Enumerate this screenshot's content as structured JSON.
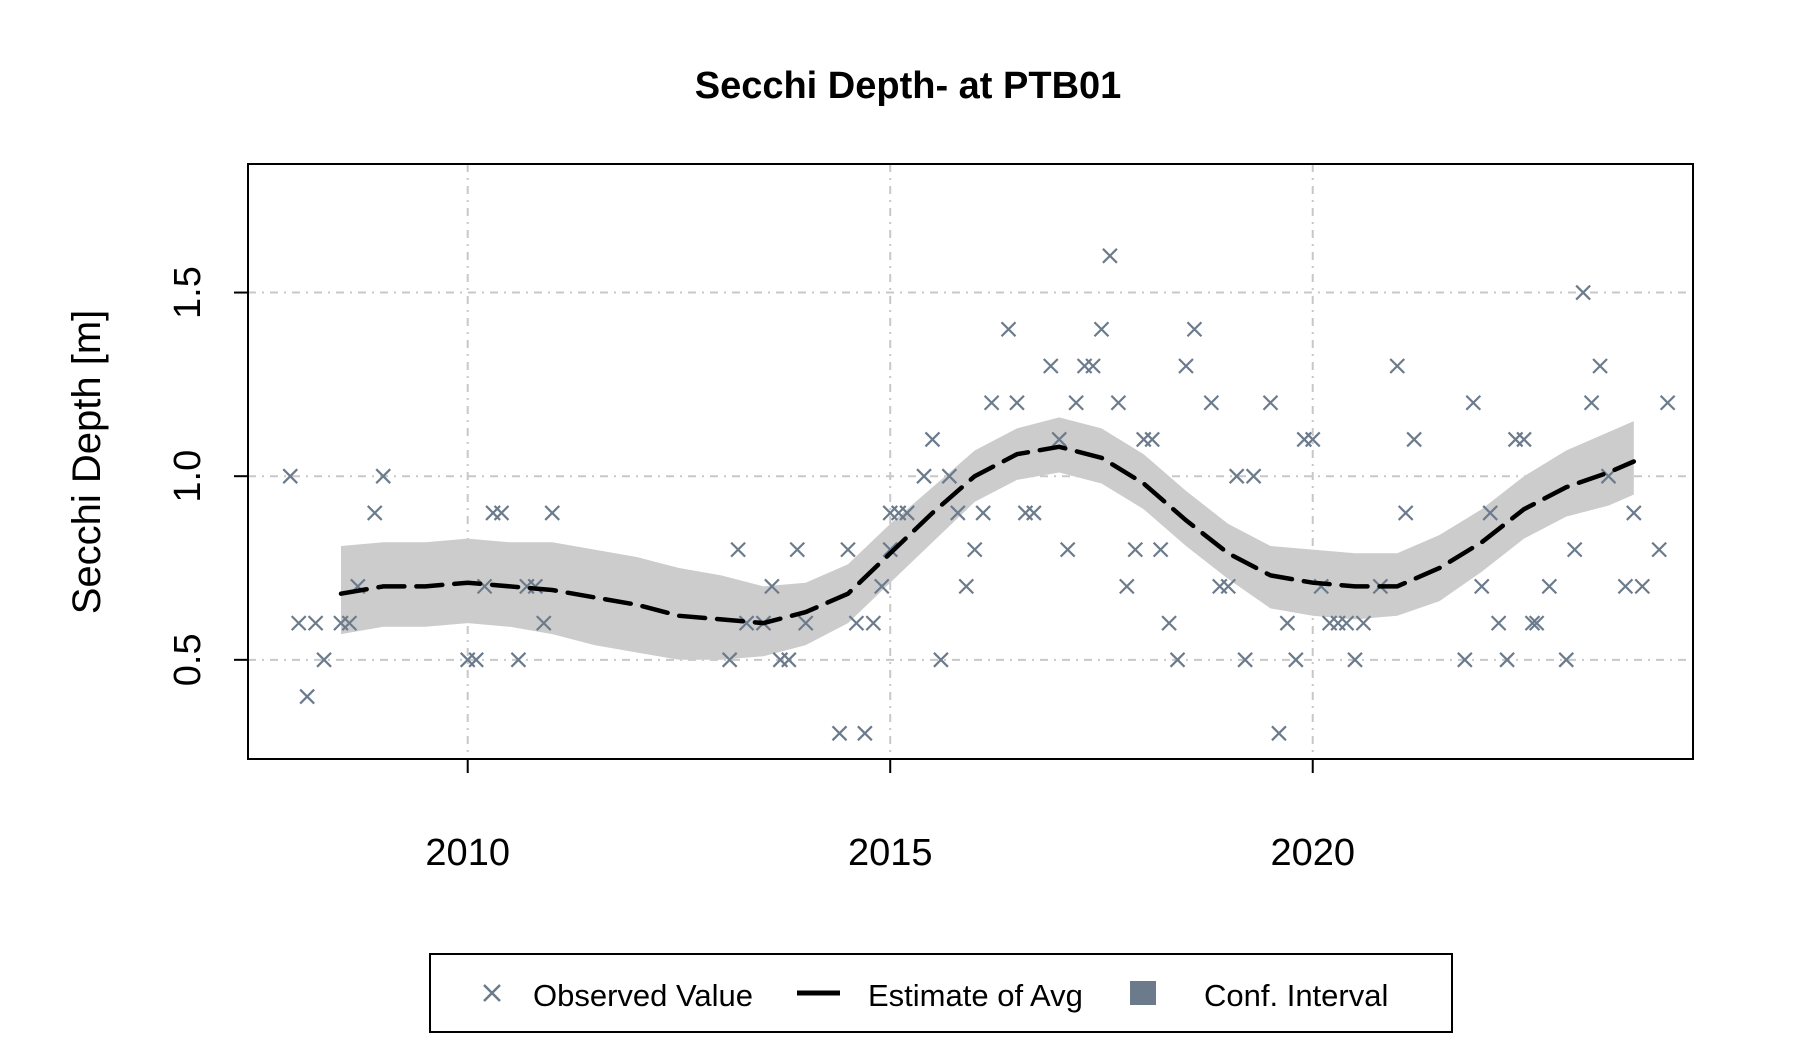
{
  "chart_data": {
    "type": "scatter",
    "title": "Secchi Depth- at PTB01",
    "xlabel": "",
    "ylabel": "Secchi Depth [m]",
    "xlim": [
      2007.4,
      2024.5
    ],
    "ylim": [
      0.23,
      1.85
    ],
    "x_ticks": [
      2010,
      2015,
      2020
    ],
    "x_tick_labels": [
      "2010",
      "2015",
      "2020"
    ],
    "y_ticks": [
      0.5,
      1.0,
      1.5
    ],
    "y_tick_labels": [
      "0.5",
      "1.0",
      "1.5"
    ],
    "grid": true,
    "legend_position": "bottom",
    "legend": [
      "Observed Value",
      "Estimate of Avg",
      "Conf. Interval"
    ],
    "colors": {
      "observed": "#6b7b8c",
      "estimate": "#000000",
      "confidence": "#cccccc",
      "legend_ci_swatch": "#6b7b8c",
      "grid": "#c8c8c8"
    },
    "observed": [
      [
        2007.9,
        1.0
      ],
      [
        2008.0,
        0.6
      ],
      [
        2008.1,
        0.4
      ],
      [
        2008.2,
        0.6
      ],
      [
        2008.3,
        0.5
      ],
      [
        2008.5,
        0.6
      ],
      [
        2008.6,
        0.6
      ],
      [
        2008.7,
        0.7
      ],
      [
        2008.9,
        0.9
      ],
      [
        2009.0,
        1.0
      ],
      [
        2010.0,
        0.5
      ],
      [
        2010.1,
        0.5
      ],
      [
        2010.2,
        0.7
      ],
      [
        2010.3,
        0.9
      ],
      [
        2010.4,
        0.9
      ],
      [
        2010.6,
        0.5
      ],
      [
        2010.7,
        0.7
      ],
      [
        2010.8,
        0.7
      ],
      [
        2010.9,
        0.6
      ],
      [
        2011.0,
        0.9
      ],
      [
        2013.1,
        0.5
      ],
      [
        2013.2,
        0.8
      ],
      [
        2013.3,
        0.6
      ],
      [
        2013.5,
        0.6
      ],
      [
        2013.6,
        0.7
      ],
      [
        2013.7,
        0.5
      ],
      [
        2013.8,
        0.5
      ],
      [
        2013.9,
        0.8
      ],
      [
        2014.0,
        0.6
      ],
      [
        2014.4,
        0.3
      ],
      [
        2014.5,
        0.8
      ],
      [
        2014.6,
        0.6
      ],
      [
        2014.7,
        0.3
      ],
      [
        2014.8,
        0.6
      ],
      [
        2014.9,
        0.7
      ],
      [
        2015.0,
        0.9
      ],
      [
        2015.0,
        0.8
      ],
      [
        2015.1,
        0.9
      ],
      [
        2015.2,
        0.9
      ],
      [
        2015.4,
        1.0
      ],
      [
        2015.5,
        1.1
      ],
      [
        2015.6,
        0.5
      ],
      [
        2015.7,
        1.0
      ],
      [
        2015.8,
        0.9
      ],
      [
        2015.9,
        0.7
      ],
      [
        2016.0,
        0.8
      ],
      [
        2016.1,
        0.9
      ],
      [
        2016.2,
        1.2
      ],
      [
        2016.4,
        1.4
      ],
      [
        2016.5,
        1.2
      ],
      [
        2016.6,
        0.9
      ],
      [
        2016.7,
        0.9
      ],
      [
        2016.9,
        1.3
      ],
      [
        2017.0,
        1.1
      ],
      [
        2017.1,
        0.8
      ],
      [
        2017.2,
        1.2
      ],
      [
        2017.3,
        1.3
      ],
      [
        2017.4,
        1.3
      ],
      [
        2017.5,
        1.4
      ],
      [
        2017.6,
        1.6
      ],
      [
        2017.7,
        1.2
      ],
      [
        2017.8,
        0.7
      ],
      [
        2017.9,
        0.8
      ],
      [
        2018.0,
        1.1
      ],
      [
        2018.1,
        1.1
      ],
      [
        2018.2,
        0.8
      ],
      [
        2018.3,
        0.6
      ],
      [
        2018.4,
        0.5
      ],
      [
        2018.5,
        1.3
      ],
      [
        2018.6,
        1.4
      ],
      [
        2018.8,
        1.2
      ],
      [
        2018.9,
        0.7
      ],
      [
        2019.0,
        0.7
      ],
      [
        2019.1,
        1.0
      ],
      [
        2019.2,
        0.5
      ],
      [
        2019.3,
        1.0
      ],
      [
        2019.5,
        1.2
      ],
      [
        2019.6,
        0.3
      ],
      [
        2019.7,
        0.6
      ],
      [
        2019.8,
        0.5
      ],
      [
        2019.9,
        1.1
      ],
      [
        2020.0,
        1.1
      ],
      [
        2020.1,
        0.7
      ],
      [
        2020.2,
        0.6
      ],
      [
        2020.3,
        0.6
      ],
      [
        2020.4,
        0.6
      ],
      [
        2020.5,
        0.5
      ],
      [
        2020.6,
        0.6
      ],
      [
        2020.8,
        0.7
      ],
      [
        2021.0,
        1.3
      ],
      [
        2021.1,
        0.9
      ],
      [
        2021.2,
        1.1
      ],
      [
        2021.8,
        0.5
      ],
      [
        2021.9,
        1.2
      ],
      [
        2022.0,
        0.7
      ],
      [
        2022.1,
        0.9
      ],
      [
        2022.2,
        0.6
      ],
      [
        2022.3,
        0.5
      ],
      [
        2022.4,
        1.1
      ],
      [
        2022.5,
        1.1
      ],
      [
        2022.6,
        0.6
      ],
      [
        2022.65,
        0.6
      ],
      [
        2022.8,
        0.7
      ],
      [
        2023.0,
        0.5
      ],
      [
        2023.1,
        0.8
      ],
      [
        2023.2,
        1.5
      ],
      [
        2023.3,
        1.2
      ],
      [
        2023.4,
        1.3
      ],
      [
        2023.5,
        1.0
      ],
      [
        2023.7,
        0.7
      ],
      [
        2023.8,
        0.9
      ],
      [
        2023.9,
        0.7
      ],
      [
        2024.1,
        0.8
      ],
      [
        2024.2,
        1.2
      ]
    ],
    "estimate": [
      [
        2008.5,
        0.68
      ],
      [
        2009.0,
        0.7
      ],
      [
        2009.5,
        0.7
      ],
      [
        2010.0,
        0.71
      ],
      [
        2010.5,
        0.7
      ],
      [
        2011.0,
        0.69
      ],
      [
        2011.5,
        0.67
      ],
      [
        2012.0,
        0.65
      ],
      [
        2012.5,
        0.62
      ],
      [
        2013.0,
        0.61
      ],
      [
        2013.5,
        0.6
      ],
      [
        2014.0,
        0.63
      ],
      [
        2014.5,
        0.68
      ],
      [
        2015.0,
        0.79
      ],
      [
        2015.5,
        0.9
      ],
      [
        2016.0,
        1.0
      ],
      [
        2016.5,
        1.06
      ],
      [
        2017.0,
        1.08
      ],
      [
        2017.5,
        1.05
      ],
      [
        2018.0,
        0.98
      ],
      [
        2018.5,
        0.88
      ],
      [
        2019.0,
        0.79
      ],
      [
        2019.5,
        0.73
      ],
      [
        2020.0,
        0.71
      ],
      [
        2020.5,
        0.7
      ],
      [
        2021.0,
        0.7
      ],
      [
        2021.5,
        0.75
      ],
      [
        2022.0,
        0.82
      ],
      [
        2022.5,
        0.91
      ],
      [
        2023.0,
        0.97
      ],
      [
        2023.5,
        1.01
      ],
      [
        2023.8,
        1.04
      ]
    ],
    "confidence_interval": [
      [
        2008.5,
        0.57,
        0.81
      ],
      [
        2009.0,
        0.59,
        0.82
      ],
      [
        2009.5,
        0.59,
        0.82
      ],
      [
        2010.0,
        0.6,
        0.83
      ],
      [
        2010.5,
        0.59,
        0.82
      ],
      [
        2011.0,
        0.57,
        0.82
      ],
      [
        2011.5,
        0.54,
        0.8
      ],
      [
        2012.0,
        0.52,
        0.78
      ],
      [
        2012.5,
        0.5,
        0.75
      ],
      [
        2013.0,
        0.5,
        0.73
      ],
      [
        2013.5,
        0.51,
        0.7
      ],
      [
        2014.0,
        0.54,
        0.71
      ],
      [
        2014.5,
        0.6,
        0.76
      ],
      [
        2015.0,
        0.71,
        0.87
      ],
      [
        2015.5,
        0.82,
        0.97
      ],
      [
        2016.0,
        0.93,
        1.07
      ],
      [
        2016.5,
        0.99,
        1.13
      ],
      [
        2017.0,
        1.01,
        1.16
      ],
      [
        2017.5,
        0.98,
        1.13
      ],
      [
        2018.0,
        0.91,
        1.06
      ],
      [
        2018.5,
        0.81,
        0.96
      ],
      [
        2019.0,
        0.72,
        0.87
      ],
      [
        2019.5,
        0.64,
        0.81
      ],
      [
        2020.0,
        0.62,
        0.8
      ],
      [
        2020.5,
        0.61,
        0.79
      ],
      [
        2021.0,
        0.62,
        0.79
      ],
      [
        2021.5,
        0.66,
        0.84
      ],
      [
        2022.0,
        0.74,
        0.91
      ],
      [
        2022.5,
        0.83,
        1.0
      ],
      [
        2023.0,
        0.89,
        1.07
      ],
      [
        2023.5,
        0.92,
        1.12
      ],
      [
        2023.8,
        0.95,
        1.15
      ]
    ]
  }
}
